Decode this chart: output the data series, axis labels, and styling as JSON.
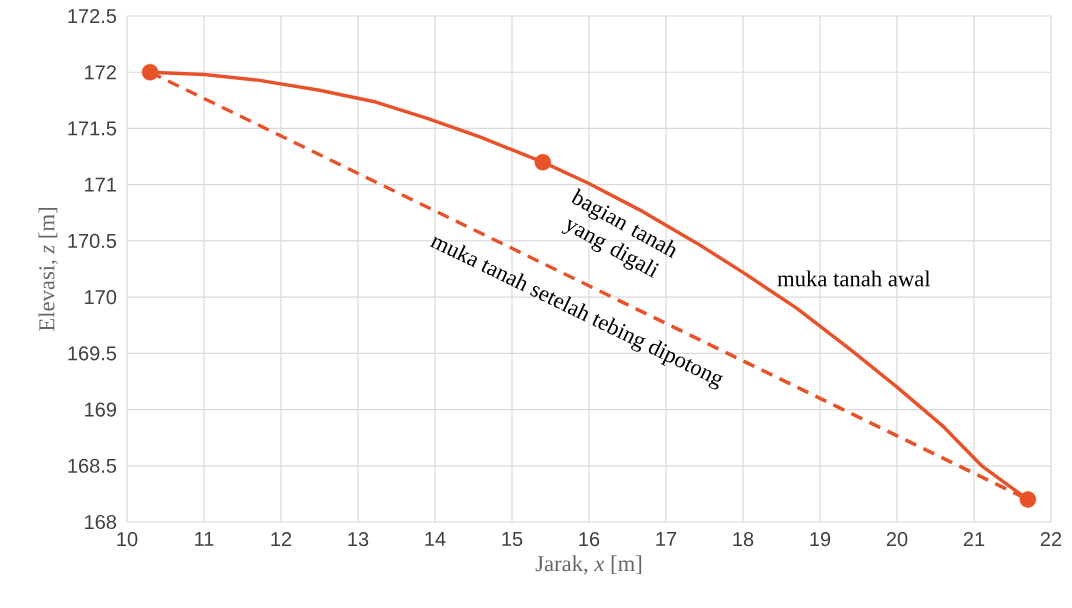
{
  "chart_data": {
    "type": "line",
    "xlabel": "Jarak, *x* [m]",
    "ylabel": "Elevasi, *z* [m]",
    "xlim": [
      10,
      22
    ],
    "ylim": [
      168,
      172.5
    ],
    "xticks": [
      10,
      11,
      12,
      13,
      14,
      15,
      16,
      17,
      18,
      19,
      20,
      21,
      22
    ],
    "yticks": [
      168,
      168.5,
      169,
      169.5,
      170,
      170.5,
      171,
      171.5,
      172,
      172.5
    ],
    "grid": true,
    "annotations": [
      "bagian tanah yang digali"
    ],
    "series": [
      {
        "name": "muka tanah awal",
        "color": "#e8522a",
        "line_style": "solid",
        "marker": "none",
        "x": [
          10.3,
          11,
          11.7,
          12.5,
          13.2,
          13.9,
          14.6,
          15.4,
          16,
          16.7,
          17.4,
          18,
          18.7,
          19.4,
          20,
          20.6,
          21.1,
          21.7
        ],
        "values": [
          172,
          171.98,
          171.93,
          171.84,
          171.74,
          171.59,
          171.42,
          171.2,
          171.01,
          170.76,
          170.48,
          170.22,
          169.9,
          169.53,
          169.2,
          168.85,
          168.5,
          168.2
        ]
      },
      {
        "name": "muka tanah setelah tebing dipotong",
        "color": "#e8522a",
        "line_style": "dashed",
        "marker": "none",
        "x": [
          10.3,
          21.7
        ],
        "values": [
          172,
          168.2
        ]
      },
      {
        "type": "scatter",
        "color": "#e8522a",
        "marker": "circle",
        "x": [
          10.3,
          15.4,
          21.7
        ],
        "values": [
          172,
          171.2,
          168.2
        ]
      }
    ]
  }
}
